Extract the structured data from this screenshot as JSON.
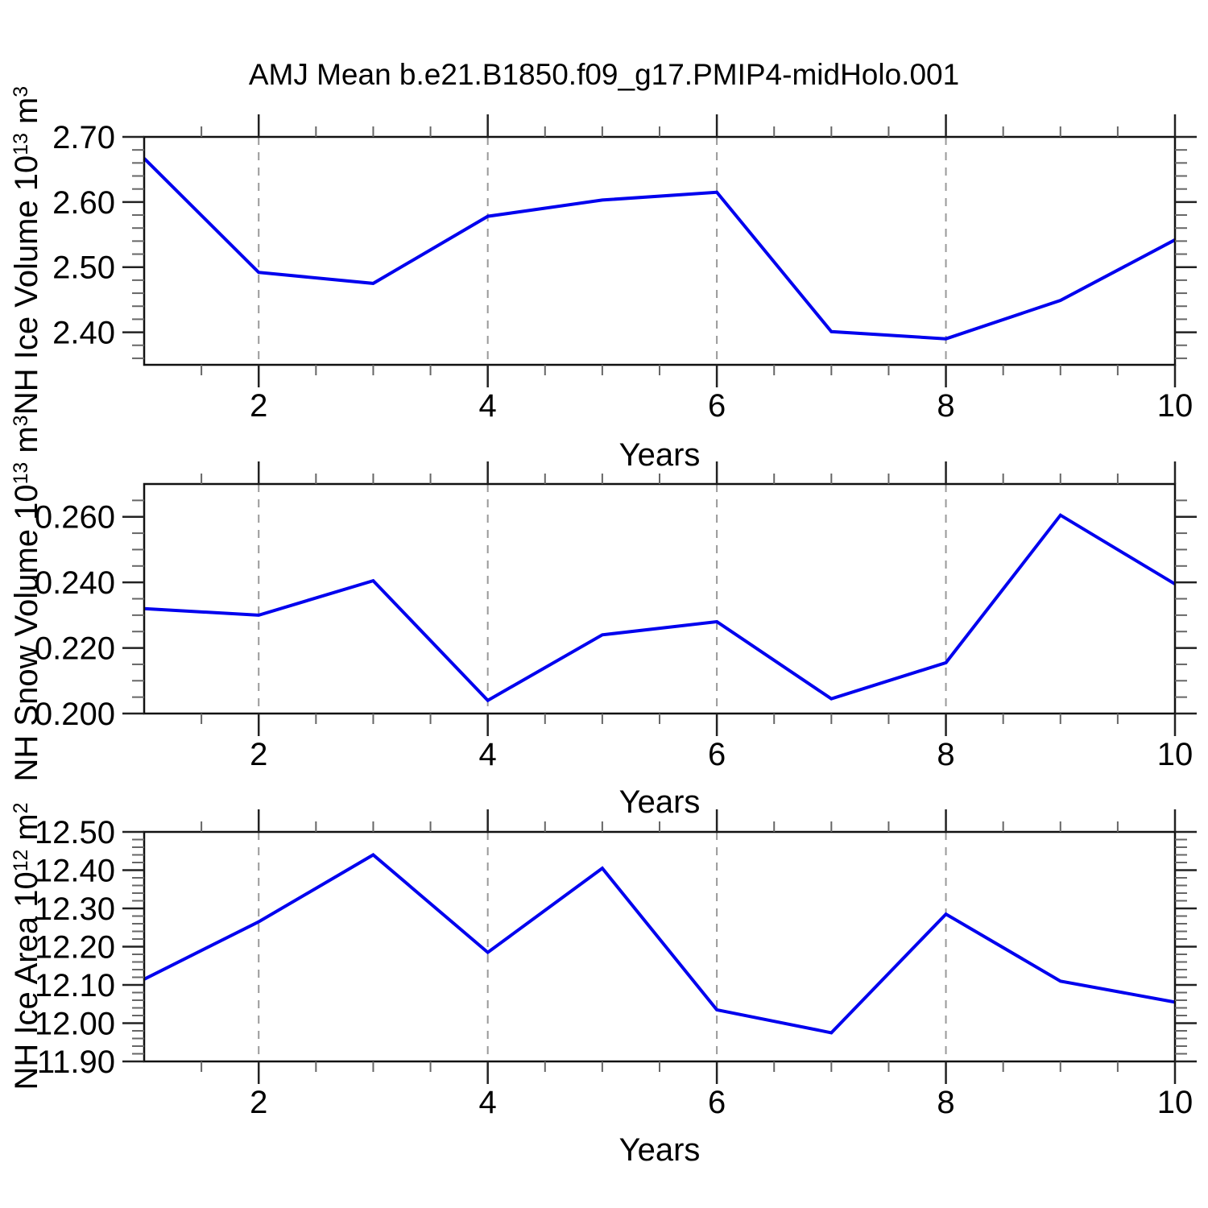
{
  "title": "AMJ Mean b.e21.B1850.f09_g17.PMIP4-midHolo.001",
  "colors": {
    "line": "#0000EE",
    "frame": "#111111",
    "grid": "#999999",
    "tick_major": "#222222",
    "tick_minor": "#666666",
    "text": "#000000",
    "background": "#FFFFFF"
  },
  "chart_data": [
    {
      "type": "line",
      "name": "nh-ice-volume",
      "ylabel_prefix": "NH Ice Volume 10",
      "ylabel_exponent": "13",
      "ylabel_unit": " m",
      "ylabel_unit_exponent": "3",
      "xlabel": "Years",
      "x": [
        1,
        2,
        3,
        4,
        5,
        6,
        7,
        8,
        9,
        10
      ],
      "values": [
        2.667,
        2.492,
        2.475,
        2.578,
        2.603,
        2.615,
        2.401,
        2.39,
        2.449,
        2.542
      ],
      "ylim": [
        2.35,
        2.7
      ],
      "yticks": [
        2.4,
        2.5,
        2.6,
        2.7
      ],
      "ytick_labels": [
        "2.40",
        "2.50",
        "2.60",
        "2.70"
      ],
      "yminor_step": 0.02,
      "xlim": [
        1,
        10
      ],
      "xticks": [
        2,
        4,
        6,
        8,
        10
      ],
      "xtick_labels": [
        "2",
        "4",
        "6",
        "8",
        "10"
      ],
      "xminor_step": 0.5,
      "grid_x": [
        2,
        4,
        6,
        8
      ],
      "grid": "vertical-dashed",
      "legend": "none"
    },
    {
      "type": "line",
      "name": "nh-snow-volume",
      "ylabel_prefix": "NH Snow Volume 10",
      "ylabel_exponent": "13",
      "ylabel_unit": " m",
      "ylabel_unit_exponent": "3",
      "xlabel": "Years",
      "x": [
        1,
        2,
        3,
        4,
        5,
        6,
        7,
        8,
        9,
        10
      ],
      "values": [
        0.232,
        0.23,
        0.2405,
        0.204,
        0.224,
        0.228,
        0.2045,
        0.2155,
        0.2605,
        0.2395
      ],
      "ylim": [
        0.2,
        0.27
      ],
      "yticks": [
        0.2,
        0.22,
        0.24,
        0.26
      ],
      "ytick_labels": [
        "0.200",
        "0.220",
        "0.240",
        "0.260"
      ],
      "yminor_step": 0.005,
      "xlim": [
        1,
        10
      ],
      "xticks": [
        2,
        4,
        6,
        8,
        10
      ],
      "xtick_labels": [
        "2",
        "4",
        "6",
        "8",
        "10"
      ],
      "xminor_step": 0.5,
      "grid_x": [
        2,
        4,
        6,
        8
      ],
      "grid": "vertical-dashed",
      "legend": "none"
    },
    {
      "type": "line",
      "name": "nh-ice-area",
      "ylabel_prefix": "NH Ice Area 10",
      "ylabel_exponent": "12",
      "ylabel_unit": " m",
      "ylabel_unit_exponent": "2",
      "xlabel": "Years",
      "x": [
        1,
        2,
        3,
        4,
        5,
        6,
        7,
        8,
        9,
        10
      ],
      "values": [
        12.115,
        12.265,
        12.44,
        12.185,
        12.405,
        12.035,
        11.975,
        12.285,
        12.11,
        12.055
      ],
      "ylim": [
        11.9,
        12.5
      ],
      "yticks": [
        11.9,
        12.0,
        12.1,
        12.2,
        12.3,
        12.4,
        12.5
      ],
      "ytick_labels": [
        "11.90",
        "12.00",
        "12.10",
        "12.20",
        "12.30",
        "12.40",
        "12.50"
      ],
      "yminor_step": 0.02,
      "xlim": [
        1,
        10
      ],
      "xticks": [
        2,
        4,
        6,
        8,
        10
      ],
      "xtick_labels": [
        "2",
        "4",
        "6",
        "8",
        "10"
      ],
      "xminor_step": 0.5,
      "grid_x": [
        2,
        4,
        6,
        8
      ],
      "grid": "vertical-dashed",
      "legend": "none"
    }
  ]
}
